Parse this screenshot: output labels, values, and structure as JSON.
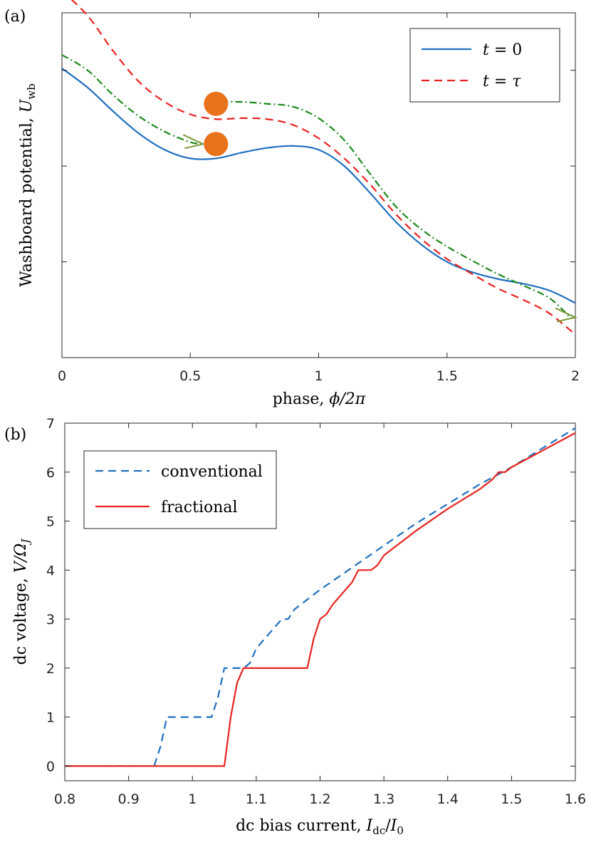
{
  "chart_data": [
    {
      "type": "line",
      "panel_label": "(a)",
      "xlabel": "phase, ",
      "xlabel_math": "ϕ/2π",
      "ylabel": "Washboard potential, ",
      "ylabel_math": "U",
      "ylabel_sub": "wb",
      "xlim": [
        0,
        2
      ],
      "ylim": [
        0,
        3.6
      ],
      "xticks": [
        "0",
        "0.5",
        "1",
        "1.5",
        "2"
      ],
      "yticks_unlabeled": [
        1,
        2,
        3
      ],
      "legend_position": "top-right",
      "series": [
        {
          "name": "t = 0",
          "legend_math": {
            "var": "t",
            "rest": " = 0"
          },
          "color": "#1f6fbf",
          "dash": "solid",
          "x": [
            0,
            0.1,
            0.2,
            0.3,
            0.4,
            0.5,
            0.6,
            0.7,
            0.8,
            0.9,
            1.0,
            1.1,
            1.2,
            1.3,
            1.4,
            1.5,
            1.6,
            1.7,
            1.8,
            1.9,
            2.0
          ],
          "y": [
            3.02,
            2.82,
            2.57,
            2.34,
            2.17,
            2.08,
            2.08,
            2.14,
            2.19,
            2.21,
            2.17,
            2.0,
            1.72,
            1.42,
            1.18,
            1.0,
            0.89,
            0.82,
            0.77,
            0.7,
            0.57
          ]
        },
        {
          "name": "t = τ",
          "legend_math": {
            "var": "t",
            "rest": " = ",
            "var2": "τ"
          },
          "color": "#e8231e",
          "dash": "dashed",
          "x": [
            0,
            0.1,
            0.2,
            0.3,
            0.4,
            0.5,
            0.6,
            0.7,
            0.8,
            0.9,
            1.0,
            1.1,
            1.2,
            1.3,
            1.4,
            1.5,
            1.6,
            1.7,
            1.8,
            1.9,
            2.0
          ],
          "y": [
            3.83,
            3.57,
            3.2,
            2.88,
            2.67,
            2.54,
            2.49,
            2.5,
            2.49,
            2.43,
            2.29,
            2.08,
            1.81,
            1.5,
            1.24,
            1.03,
            0.87,
            0.72,
            0.6,
            0.46,
            0.24
          ]
        },
        {
          "name": "",
          "color": "#1b8a1b",
          "dash": "dashdot",
          "x": [
            0,
            0.1,
            0.2,
            0.3,
            0.4,
            0.5,
            0.55
          ],
          "y": [
            3.16,
            3.0,
            2.74,
            2.52,
            2.36,
            2.25,
            2.23
          ]
        },
        {
          "name": "",
          "color": "#1b8a1b",
          "dash": "dashdot",
          "x": [
            0.62,
            0.7,
            0.8,
            0.9,
            1.0,
            1.1,
            1.2,
            1.3,
            1.4,
            1.5,
            1.6,
            1.7,
            1.8,
            1.9,
            1.98
          ],
          "y": [
            2.67,
            2.67,
            2.65,
            2.62,
            2.5,
            2.27,
            1.92,
            1.58,
            1.34,
            1.16,
            1.01,
            0.87,
            0.75,
            0.62,
            0.42
          ]
        }
      ],
      "annotations": [
        {
          "kind": "ball",
          "x": 0.6,
          "y": 2.65,
          "color": "#e8711c"
        },
        {
          "kind": "ball",
          "x": 0.6,
          "y": 2.23,
          "color": "#e8711c"
        },
        {
          "kind": "arrow",
          "x": 0.55,
          "y": 2.23,
          "color": "#7a9a3a"
        },
        {
          "kind": "arrow",
          "x": 2.0,
          "y": 0.42,
          "color": "#7a9a3a"
        }
      ]
    },
    {
      "type": "line",
      "panel_label": "(b)",
      "xlabel": "dc bias current, ",
      "xlabel_math": "I",
      "xlabel_sub": "dc",
      "xlabel_tail": "/",
      "xlabel_math2": "I",
      "xlabel_sub2": "0",
      "ylabel": "dc voltage, ",
      "ylabel_math": "V/Ω",
      "ylabel_sub": "J",
      "xlim": [
        0.8,
        1.6
      ],
      "ylim": [
        -0.3,
        7
      ],
      "xticks": [
        "0.8",
        "0.9",
        "1",
        "1.1",
        "1.2",
        "1.3",
        "1.4",
        "1.5",
        "1.6"
      ],
      "yticks": [
        "0",
        "1",
        "2",
        "3",
        "4",
        "5",
        "6",
        "7"
      ],
      "legend_position": "top-left",
      "series": [
        {
          "name": "conventional",
          "color": "#1f6fbf",
          "dash": "dashed",
          "x": [
            0.8,
            0.94,
            0.95,
            0.96,
            1.03,
            1.04,
            1.05,
            1.08,
            1.09,
            1.1,
            1.12,
            1.14,
            1.15,
            1.16,
            1.2,
            1.25,
            1.3,
            1.35,
            1.4,
            1.45,
            1.5,
            1.55,
            1.6
          ],
          "y": [
            0,
            0,
            0.4,
            1.0,
            1.0,
            1.4,
            2.0,
            2.0,
            2.1,
            2.4,
            2.7,
            3.0,
            3.0,
            3.2,
            3.6,
            4.05,
            4.5,
            4.95,
            5.35,
            5.75,
            6.1,
            6.5,
            6.9
          ]
        },
        {
          "name": "fractional",
          "color": "#e8231e",
          "dash": "solid",
          "x": [
            0.8,
            1.05,
            1.06,
            1.07,
            1.08,
            1.18,
            1.19,
            1.2,
            1.21,
            1.22,
            1.25,
            1.26,
            1.28,
            1.29,
            1.3,
            1.35,
            1.4,
            1.45,
            1.47,
            1.48,
            1.49,
            1.5,
            1.55,
            1.6
          ],
          "y": [
            0,
            0,
            1.0,
            1.7,
            2.0,
            2.0,
            2.6,
            3.0,
            3.1,
            3.3,
            3.75,
            4.0,
            4.0,
            4.1,
            4.3,
            4.8,
            5.25,
            5.65,
            5.85,
            6.0,
            6.0,
            6.1,
            6.45,
            6.8
          ]
        }
      ]
    }
  ]
}
